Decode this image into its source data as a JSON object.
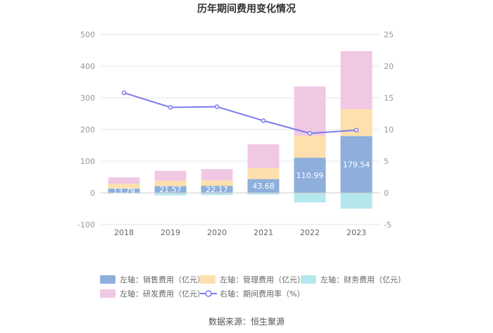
{
  "chart_data": {
    "type": "bar",
    "title": "历年期间费用变化情况",
    "categories": [
      "2018",
      "2019",
      "2020",
      "2021",
      "2022",
      "2023"
    ],
    "left_axis": {
      "min": -100,
      "max": 500,
      "ticks": [
        "-100",
        "0",
        "100",
        "200",
        "300",
        "400",
        "500"
      ]
    },
    "right_axis": {
      "min": -5,
      "max": 25,
      "ticks": [
        "-5",
        "0",
        "5",
        "10",
        "15",
        "20",
        "25"
      ]
    },
    "series": [
      {
        "name": "左轴：销售费用（亿元）",
        "axis": "left",
        "color": "#8eaedc",
        "values": [
          13.79,
          21.57,
          22.17,
          43.68,
          110.99,
          179.54
        ],
        "labels": [
          "13.79",
          "21.57",
          "22.17",
          "43.68",
          "110.99",
          "179.54"
        ]
      },
      {
        "name": "左轴：管理费用（亿元）",
        "axis": "left",
        "color": "#fde0ad",
        "values": [
          15,
          17,
          17,
          35,
          70,
          85
        ]
      },
      {
        "name": "左轴：财务费用（亿元）",
        "axis": "left",
        "color": "#b5e8ec",
        "values": [
          -2,
          -8,
          -7,
          -5,
          -30,
          -50
        ]
      },
      {
        "name": "左轴：研发费用（亿元）",
        "axis": "left",
        "color": "#f0c8e4",
        "values": [
          20,
          31,
          36,
          75,
          155,
          183
        ]
      },
      {
        "name": "右轴：期间费用率（%）",
        "axis": "right",
        "type": "line",
        "color": "#7b7bea",
        "values": [
          15.8,
          13.5,
          13.6,
          11.4,
          9.4,
          9.9
        ]
      }
    ],
    "source": "数据来源：恒生聚源"
  }
}
